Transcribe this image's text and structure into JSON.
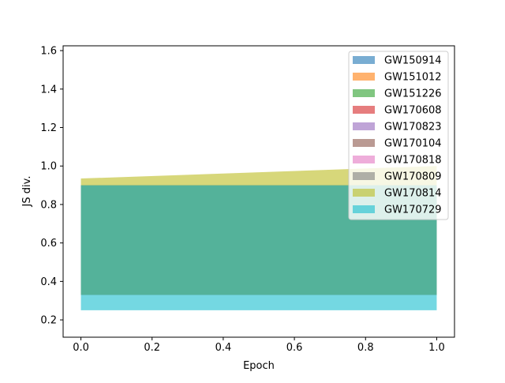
{
  "chart_data": {
    "type": "area",
    "xlabel": "Epoch",
    "ylabel": "JS div.",
    "xlim": [
      -0.05,
      1.05
    ],
    "ylim": [
      0.11,
      1.625
    ],
    "x_ticks": [
      0.0,
      0.2,
      0.4,
      0.6,
      0.8,
      1.0
    ],
    "x_tick_labels": [
      "0.0",
      "0.2",
      "0.4",
      "0.6",
      "0.8",
      "1.0"
    ],
    "y_ticks": [
      0.2,
      0.4,
      0.6,
      0.8,
      1.0,
      1.2,
      1.4,
      1.6
    ],
    "y_tick_labels": [
      "0.2",
      "0.4",
      "0.6",
      "0.8",
      "1.0",
      "1.2",
      "1.4",
      "1.6"
    ],
    "grid": false,
    "legend_position": "top-right",
    "x": [
      0.0,
      1.0
    ],
    "series": [
      {
        "name": "GW150914",
        "color": "#1f77b4",
        "lower": [
          0.33,
          0.33
        ],
        "upper": [
          0.9,
          0.9
        ]
      },
      {
        "name": "GW151012",
        "color": "#ff7f0e",
        "lower": [
          0.33,
          0.33
        ],
        "upper": [
          0.9,
          0.9
        ]
      },
      {
        "name": "GW151226",
        "color": "#2ca02c",
        "lower": [
          0.33,
          0.33
        ],
        "upper": [
          0.9,
          0.9
        ]
      },
      {
        "name": "GW170608",
        "color": "#d62728",
        "lower": [
          0.33,
          0.33
        ],
        "upper": [
          0.9,
          0.9
        ]
      },
      {
        "name": "GW170823",
        "color": "#9467bd",
        "lower": [
          0.33,
          0.33
        ],
        "upper": [
          0.9,
          0.9
        ]
      },
      {
        "name": "GW170104",
        "color": "#8c564b",
        "lower": [
          0.33,
          0.33
        ],
        "upper": [
          0.9,
          0.9
        ]
      },
      {
        "name": "GW170818",
        "color": "#e377c2",
        "lower": [
          0.33,
          0.33
        ],
        "upper": [
          0.9,
          0.9
        ]
      },
      {
        "name": "GW170809",
        "color": "#7f7f7f",
        "lower": [
          0.33,
          0.33
        ],
        "upper": [
          0.9,
          0.9
        ]
      },
      {
        "name": "GW170814",
        "color": "#bcbd22",
        "lower": [
          0.33,
          0.33
        ],
        "upper": [
          0.935,
          1.0
        ]
      },
      {
        "name": "GW170729",
        "color": "#17becf",
        "lower": [
          0.25,
          0.25
        ],
        "upper": [
          0.9,
          0.9
        ]
      }
    ]
  }
}
